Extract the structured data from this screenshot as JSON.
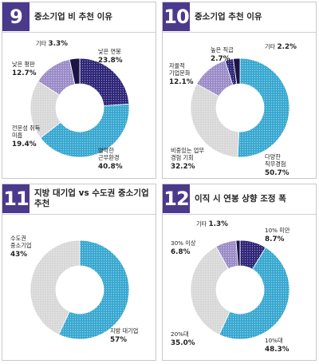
{
  "colors": {
    "header_accent": "#4b3a8c",
    "navy": "#2e2678",
    "blue": "#39a8d0",
    "lavender": "#9b8cc8",
    "lightgray": "#d8d8d8",
    "dark": "#1c1446"
  },
  "chart_data": [
    {
      "type": "donut",
      "panel_number": "9",
      "title": "중소기업 비 추천 이유",
      "slices": [
        {
          "label": "낮은 연봉",
          "value": 23.8,
          "display": "23.8%",
          "color": "#2e2678",
          "pattern": "dots"
        },
        {
          "label": "열악한 근무환경",
          "value": 40.8,
          "display": "40.8%",
          "color": "#39a8d0",
          "pattern": "dots"
        },
        {
          "label": "전문성 취득 미흡",
          "value": 19.4,
          "display": "19.4%",
          "color": "#d8d8d8",
          "pattern": "dots"
        },
        {
          "label": "낮은 평판",
          "value": 12.7,
          "display": "12.7%",
          "color": "#9b8cc8",
          "pattern": "dots"
        },
        {
          "label": "기타",
          "value": 3.3,
          "display": "3.3%",
          "color": "#1c1446",
          "pattern": "solid"
        }
      ]
    },
    {
      "type": "donut",
      "panel_number": "10",
      "title": "중소기업 추천 이유",
      "slices": [
        {
          "label": "다양한 직무경험",
          "value": 50.7,
          "display": "50.7%",
          "color": "#39a8d0",
          "pattern": "dots"
        },
        {
          "label": "비중있는 업무 경험 기회",
          "value": 32.2,
          "display": "32.2%",
          "color": "#d8d8d8",
          "pattern": "dots"
        },
        {
          "label": "자율적 기업문화",
          "value": 12.1,
          "display": "12.1%",
          "color": "#9b8cc8",
          "pattern": "dots"
        },
        {
          "label": "높은 직급",
          "value": 2.7,
          "display": "2.7%",
          "color": "#2e2678",
          "pattern": "dots"
        },
        {
          "label": "기타",
          "value": 2.2,
          "display": "2.2%",
          "color": "#1c1446",
          "pattern": "solid"
        }
      ]
    },
    {
      "type": "donut",
      "panel_number": "11",
      "title": "지방 대기업 vs 수도권 중소기업 추천",
      "slices": [
        {
          "label": "지방 대기업",
          "value": 57,
          "display": "57%",
          "color": "#39a8d0",
          "pattern": "dots"
        },
        {
          "label": "수도권 중소기업",
          "value": 43,
          "display": "43%",
          "color": "#d8d8d8",
          "pattern": "dots"
        }
      ]
    },
    {
      "type": "donut",
      "panel_number": "12",
      "title": "이직 시 연봉 상향 조정 폭",
      "slices": [
        {
          "label": "10% 미만",
          "value": 8.7,
          "display": "8.7%",
          "color": "#2e2678",
          "pattern": "dots"
        },
        {
          "label": "10%대",
          "value": 48.3,
          "display": "48.3%",
          "color": "#39a8d0",
          "pattern": "dots"
        },
        {
          "label": "20%대",
          "value": 35.0,
          "display": "35.0%",
          "color": "#d8d8d8",
          "pattern": "dots"
        },
        {
          "label": "30% 이상",
          "value": 6.8,
          "display": "6.8%",
          "color": "#9b8cc8",
          "pattern": "dots"
        },
        {
          "label": "기타",
          "value": 1.3,
          "display": "1.3%",
          "color": "#1c1446",
          "pattern": "solid"
        }
      ]
    }
  ]
}
